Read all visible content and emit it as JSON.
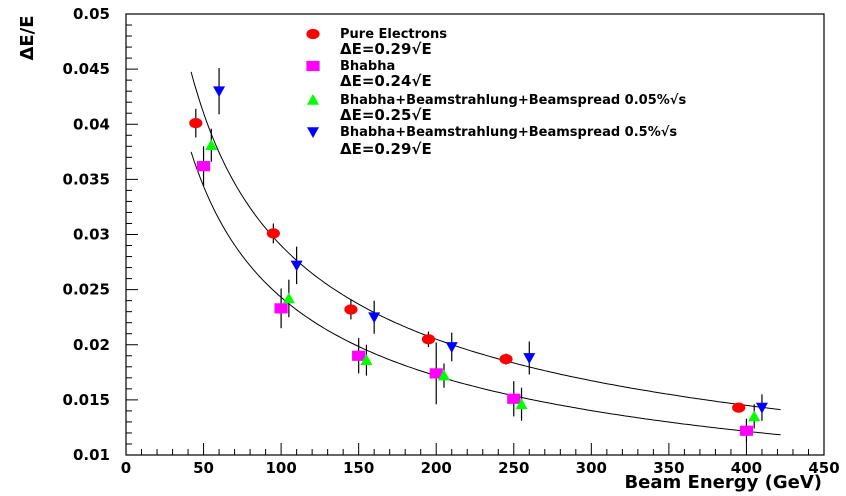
{
  "chart_data": {
    "type": "scatter",
    "ylabel": "ΔE/E",
    "xlabel": "Beam Energy (GeV)",
    "xlim": [
      0,
      450
    ],
    "ylim": [
      0.01,
      0.05
    ],
    "x_ticks": [
      "0",
      "50",
      "100",
      "150",
      "200",
      "250",
      "300",
      "350",
      "400",
      "450"
    ],
    "y_ticks": [
      "0.01",
      "0.015",
      "0.02",
      "0.025",
      "0.03",
      "0.035",
      "0.04",
      "0.045",
      "0.05"
    ],
    "grid": false,
    "legend_position": "top",
    "series": [
      {
        "name": "Pure Electrons",
        "resolution_label": "ΔE=0.29√E",
        "marker": "circle",
        "color": "#ff0000",
        "points": [
          {
            "x": 45,
            "y": 0.0401,
            "err": 0.0013
          },
          {
            "x": 95,
            "y": 0.0301,
            "err": 0.0009
          },
          {
            "x": 145,
            "y": 0.0232,
            "err": 0.0009
          },
          {
            "x": 195,
            "y": 0.0205,
            "err": 0.0007
          },
          {
            "x": 245,
            "y": 0.0187,
            "err": 0.0005
          },
          {
            "x": 395,
            "y": 0.0143,
            "err": 0.0004
          }
        ]
      },
      {
        "name": "Bhabha",
        "resolution_label": "ΔE=0.24√E",
        "marker": "square",
        "color": "#ff00ff",
        "points": [
          {
            "x": 50,
            "y": 0.0362,
            "err": 0.0018
          },
          {
            "x": 100,
            "y": 0.0233,
            "err": 0.0018
          },
          {
            "x": 150,
            "y": 0.019,
            "err": 0.0016
          },
          {
            "x": 200,
            "y": 0.0174,
            "err": 0.0028
          },
          {
            "x": 250,
            "y": 0.0151,
            "err": 0.0016
          },
          {
            "x": 400,
            "y": 0.0122,
            "err": 0.0011
          }
        ]
      },
      {
        "name": "Bhabha+Beamstrahlung+Beamspread 0.05%√s",
        "resolution_label": "ΔE=0.25√E",
        "marker": "triangle-up",
        "color": "#00ff00",
        "points": [
          {
            "x": 55,
            "y": 0.0381,
            "err": 0.0015
          },
          {
            "x": 105,
            "y": 0.0242,
            "err": 0.0017
          },
          {
            "x": 155,
            "y": 0.0186,
            "err": 0.0014
          },
          {
            "x": 205,
            "y": 0.0172,
            "err": 0.0011
          },
          {
            "x": 255,
            "y": 0.0146,
            "err": 0.0015
          },
          {
            "x": 405,
            "y": 0.0135,
            "err": 0.0011
          }
        ]
      },
      {
        "name": "Bhabha+Beamstrahlung+Beamspread  0.5%√s",
        "resolution_label": "ΔE=0.29√E",
        "marker": "triangle-down",
        "color": "#0000ff",
        "points": [
          {
            "x": 60,
            "y": 0.043,
            "err": 0.0021
          },
          {
            "x": 110,
            "y": 0.0272,
            "err": 0.0017
          },
          {
            "x": 160,
            "y": 0.0225,
            "err": 0.0015
          },
          {
            "x": 210,
            "y": 0.0198,
            "err": 0.0013
          },
          {
            "x": 260,
            "y": 0.0188,
            "err": 0.0015
          },
          {
            "x": 410,
            "y": 0.0143,
            "err": 0.0012
          }
        ]
      }
    ],
    "fit_curves": [
      {
        "a": 0.29,
        "x_range": [
          42,
          422
        ]
      },
      {
        "a": 0.243,
        "x_range": [
          42,
          422
        ]
      }
    ]
  }
}
